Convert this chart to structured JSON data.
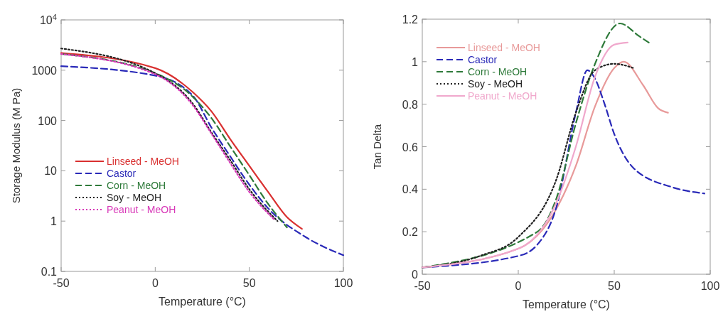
{
  "chart_data": [
    {
      "type": "line",
      "xlabel": "Temperature (°C)",
      "ylabel": "Storage Modulus (M Pa)",
      "log": "y",
      "xlim": [
        -50,
        100
      ],
      "xticks": [
        -50,
        0,
        50,
        100
      ],
      "ylim": [
        0.1,
        10000
      ],
      "yticks": [
        0.1,
        1,
        10,
        100,
        1000,
        {
          "value": 10000,
          "label": "10$^{4}$"
        }
      ],
      "legend": "bottom left",
      "series": [
        {
          "name": "Linseed - MeOH",
          "color": "#d93030",
          "line_style": "solid",
          "x": [
            -50,
            0,
            20,
            30,
            40,
            50,
            60,
            70,
            78
          ],
          "values": [
            2200,
            1100,
            365,
            150,
            42,
            12.6,
            3.8,
            1.2,
            0.7
          ]
        },
        {
          "name": "Castor",
          "color": "#2a2ab8",
          "line_style": "dashed",
          "x": [
            -50,
            0,
            20,
            30,
            40,
            50,
            60,
            80,
            100
          ],
          "values": [
            1200,
            780,
            310,
            71,
            19,
            5.3,
            1.8,
            0.48,
            0.21
          ]
        },
        {
          "name": "Corn - MeOH",
          "color": "#2e7a3a",
          "line_style": "dashed",
          "x": [
            -50,
            0,
            20,
            30,
            40,
            50,
            60,
            70
          ],
          "values": [
            2100,
            870,
            295,
            110,
            30,
            8.2,
            2.2,
            0.75
          ]
        },
        {
          "name": "Soy - MeOH",
          "color": "#222222",
          "line_style": "dotted",
          "x": [
            -50,
            0,
            20,
            30,
            40,
            50,
            65
          ],
          "values": [
            2700,
            870,
            215,
            57,
            16,
            4.3,
            1.0
          ]
        },
        {
          "name": "Peanut - MeOH",
          "color": "#d838b8",
          "line_style": "dotted",
          "x": [
            -50,
            0,
            20,
            30,
            40,
            50,
            63
          ],
          "values": [
            2100,
            830,
            200,
            54,
            14,
            3.8,
            1.1
          ]
        }
      ]
    },
    {
      "type": "line",
      "xlabel": "Temperature (°C)",
      "ylabel": "Tan Delta",
      "xlim": [
        -50,
        100
      ],
      "xticks": [
        -50,
        0,
        50,
        100
      ],
      "ylim": [
        0,
        1.2
      ],
      "yticks": [
        0,
        0.2,
        0.4,
        0.6,
        0.8,
        1,
        1.2
      ],
      "legend": "top left",
      "series": [
        {
          "name": "Linseed - MeOH",
          "color": "#e89a9a",
          "line_style": "solid",
          "x": [
            -50,
            0,
            20,
            30,
            40,
            50,
            55,
            65,
            73,
            78
          ],
          "values": [
            0.032,
            0.12,
            0.31,
            0.51,
            0.79,
            0.97,
            1.0,
            0.89,
            0.78,
            0.76
          ]
        },
        {
          "name": "Castor",
          "color": "#2a2ab8",
          "line_style": "dashed",
          "x": [
            -50,
            0,
            10,
            20,
            30,
            36,
            40,
            45,
            50,
            60,
            80,
            97
          ],
          "values": [
            0.032,
            0.086,
            0.14,
            0.32,
            0.76,
            0.96,
            0.92,
            0.8,
            0.66,
            0.5,
            0.41,
            0.38
          ]
        },
        {
          "name": "Corn - MeOH",
          "color": "#2e7a3a",
          "line_style": "dashed",
          "x": [
            -50,
            10,
            20,
            30,
            40,
            53,
            63,
            68
          ],
          "values": [
            0.032,
            0.2,
            0.36,
            0.71,
            0.99,
            1.18,
            1.12,
            1.09
          ]
        },
        {
          "name": "Soy - MeOH",
          "color": "#222222",
          "line_style": "dotted",
          "x": [
            -50,
            -20,
            0,
            20,
            30,
            40,
            50,
            60
          ],
          "values": [
            0.032,
            0.086,
            0.175,
            0.45,
            0.76,
            0.96,
            0.99,
            0.97
          ]
        },
        {
          "name": "Peanut - MeOH",
          "color": "#f0a8cc",
          "line_style": "solid",
          "x": [
            -50,
            0,
            20,
            30,
            40,
            50,
            57
          ],
          "values": [
            0.032,
            0.12,
            0.34,
            0.6,
            0.93,
            1.08,
            1.09
          ]
        }
      ]
    }
  ]
}
